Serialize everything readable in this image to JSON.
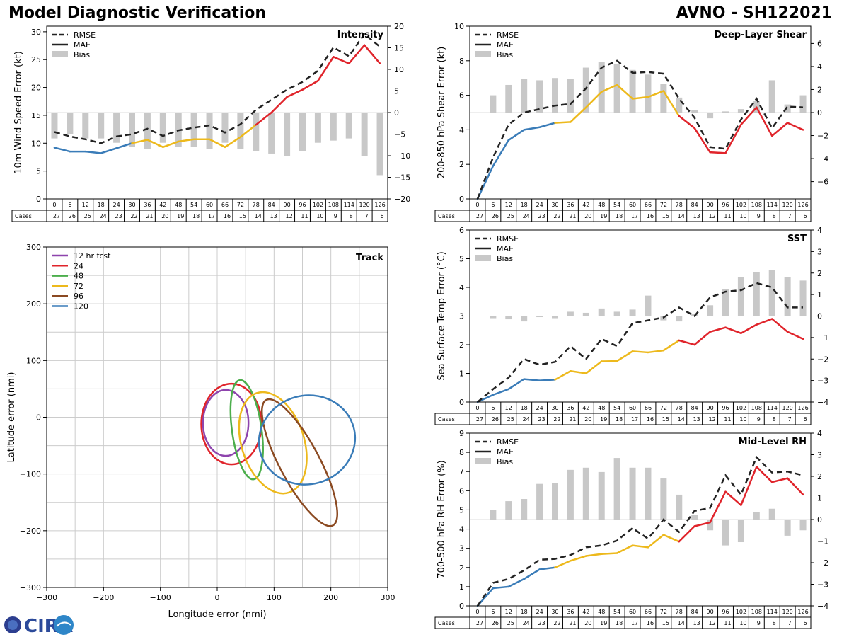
{
  "page": {
    "title": "Model Diagnostic Verification",
    "model_label": "AVNO - SH122021",
    "logo_text": "CIRA"
  },
  "legend_labels": {
    "rmse": "RMSE",
    "mae": "MAE",
    "bias": "Bias",
    "cases": "Cases"
  },
  "colors": {
    "blue": "#3a7cb8",
    "yellow": "#edb91c",
    "red": "#e0242b",
    "bias": "#c8c8c8",
    "dash": "#222222",
    "grid": "#cccccc",
    "track12": "#8e44ad",
    "track24": "#e0242b",
    "track48": "#4cae4c",
    "track72": "#edb91c",
    "track96": "#8b4a22",
    "track120": "#3a7cb8"
  },
  "chart_data": [
    {
      "id": "intensity",
      "type": "line",
      "title": "Intensity",
      "ylabel": "10m Wind Speed Error (kt)",
      "ylim": [
        0,
        31
      ],
      "yticks": [
        0,
        5,
        10,
        15,
        20,
        25,
        30
      ],
      "y2lim": [
        -20,
        20
      ],
      "y2ticks": [
        -20,
        -15,
        -10,
        -5,
        0,
        5,
        10,
        15,
        20
      ],
      "x": [
        0,
        6,
        12,
        18,
        24,
        30,
        36,
        42,
        48,
        54,
        60,
        66,
        72,
        78,
        84,
        90,
        96,
        102,
        108,
        114,
        120,
        126
      ],
      "rmse": [
        12.0,
        11.2,
        10.7,
        10.0,
        11.2,
        11.6,
        12.6,
        11.3,
        12.3,
        12.8,
        13.2,
        11.9,
        13.4,
        16.0,
        17.8,
        19.6,
        21.0,
        23.0,
        27.2,
        25.6,
        29.6,
        27.3
      ],
      "mae": [
        9.2,
        8.5,
        8.5,
        8.2,
        9.1,
        10.0,
        10.6,
        9.3,
        10.3,
        10.7,
        10.7,
        9.3,
        11.1,
        13.3,
        15.5,
        18.3,
        19.6,
        21.2,
        25.5,
        24.3,
        27.6,
        24.3
      ],
      "bias": [
        -6,
        -5,
        -6,
        -6,
        -7,
        -8,
        -8.5,
        -7,
        -8,
        -8,
        -8.5,
        -7,
        -8.5,
        -9,
        -9.5,
        -10,
        -9,
        -7,
        -6.5,
        -6,
        -10,
        -14.5
      ],
      "cases": [
        27,
        26,
        25,
        24,
        23,
        22,
        21,
        20,
        19,
        18,
        17,
        16,
        15,
        14,
        13,
        12,
        11,
        10,
        9,
        8,
        7,
        6
      ]
    },
    {
      "id": "shear",
      "type": "line",
      "title": "Deep-Layer Shear",
      "ylabel": "200-850 hPa Shear Error (kt)",
      "ylim": [
        0,
        10
      ],
      "yticks": [
        0,
        2,
        4,
        6,
        8,
        10
      ],
      "y2lim": [
        -7.5,
        7.5
      ],
      "y2ticks": [
        -6,
        -4,
        -2,
        0,
        2,
        4,
        6
      ],
      "x": [
        0,
        6,
        12,
        18,
        24,
        30,
        36,
        42,
        48,
        54,
        60,
        66,
        72,
        78,
        84,
        90,
        96,
        102,
        108,
        114,
        120,
        126
      ],
      "rmse": [
        0.0,
        2.4,
        4.3,
        5.0,
        5.2,
        5.4,
        5.5,
        6.4,
        7.6,
        8.0,
        7.3,
        7.35,
        7.25,
        5.8,
        4.7,
        3.0,
        2.9,
        4.6,
        5.8,
        4.1,
        5.35,
        5.3
      ],
      "mae": [
        0.0,
        1.9,
        3.4,
        4.0,
        4.15,
        4.4,
        4.45,
        5.3,
        6.2,
        6.6,
        5.8,
        5.9,
        6.25,
        4.8,
        4.1,
        2.7,
        2.65,
        4.3,
        5.3,
        3.65,
        4.4,
        4.0
      ],
      "bias": [
        0,
        1.5,
        2.4,
        2.9,
        2.8,
        3.0,
        2.9,
        3.9,
        4.4,
        4.2,
        3.7,
        3.3,
        2.5,
        1.3,
        0.2,
        -0.5,
        0.1,
        0.3,
        1.0,
        2.8,
        0.7,
        1.5
      ],
      "cases": [
        27,
        26,
        25,
        24,
        23,
        22,
        21,
        20,
        19,
        18,
        17,
        16,
        15,
        14,
        13,
        12,
        11,
        10,
        9,
        8,
        7,
        6
      ]
    },
    {
      "id": "sst",
      "type": "line",
      "title": "SST",
      "ylabel": "Sea Surface Temp Error (°C)",
      "ylim": [
        0,
        6
      ],
      "yticks": [
        0,
        1,
        2,
        3,
        4,
        5,
        6
      ],
      "y2lim": [
        -4,
        4
      ],
      "y2ticks": [
        -4,
        -3,
        -2,
        -1,
        0,
        1,
        2,
        3,
        4
      ],
      "x": [
        0,
        6,
        12,
        18,
        24,
        30,
        36,
        42,
        48,
        54,
        60,
        66,
        72,
        78,
        84,
        90,
        96,
        102,
        108,
        114,
        120,
        126
      ],
      "rmse": [
        0.0,
        0.45,
        0.85,
        1.5,
        1.3,
        1.4,
        1.95,
        1.5,
        2.2,
        1.95,
        2.75,
        2.85,
        2.95,
        3.3,
        3.0,
        3.65,
        3.85,
        3.9,
        4.15,
        4.0,
        3.3,
        3.3
      ],
      "mae": [
        0.0,
        0.25,
        0.45,
        0.8,
        0.75,
        0.78,
        1.08,
        1.0,
        1.42,
        1.43,
        1.77,
        1.73,
        1.8,
        2.15,
        2.0,
        2.45,
        2.6,
        2.4,
        2.7,
        2.9,
        2.45,
        2.2
      ],
      "bias": [
        0,
        -0.1,
        -0.15,
        -0.25,
        -0.05,
        -0.1,
        0.2,
        0.15,
        0.35,
        0.2,
        0.3,
        0.95,
        -0.2,
        -0.25,
        0.1,
        0.5,
        1.25,
        1.8,
        2.05,
        2.15,
        1.8,
        1.65
      ],
      "cases": [
        27,
        26,
        25,
        24,
        23,
        22,
        21,
        20,
        19,
        18,
        17,
        16,
        15,
        14,
        13,
        12,
        11,
        10,
        9,
        8,
        7,
        6
      ]
    },
    {
      "id": "rh",
      "type": "line",
      "title": "Mid-Level RH",
      "ylabel": "700-500 hPa RH Error (%)",
      "ylim": [
        0,
        9
      ],
      "yticks": [
        0,
        1,
        2,
        3,
        4,
        5,
        6,
        7,
        8,
        9
      ],
      "y2lim": [
        -4,
        4
      ],
      "y2ticks": [
        -4,
        -3,
        -2,
        -1,
        0,
        1,
        2,
        3,
        4
      ],
      "x": [
        0,
        6,
        12,
        18,
        24,
        30,
        36,
        42,
        48,
        54,
        60,
        66,
        72,
        78,
        84,
        90,
        96,
        102,
        108,
        114,
        120,
        126
      ],
      "rmse": [
        0.0,
        1.2,
        1.4,
        1.85,
        2.4,
        2.45,
        2.65,
        3.05,
        3.15,
        3.4,
        4.05,
        3.5,
        4.5,
        3.85,
        4.95,
        5.1,
        6.8,
        5.8,
        7.75,
        6.95,
        7.0,
        6.8
      ],
      "mae": [
        0.0,
        0.92,
        1.0,
        1.4,
        1.9,
        2.0,
        2.35,
        2.6,
        2.7,
        2.75,
        3.15,
        3.05,
        3.7,
        3.35,
        4.15,
        4.35,
        5.95,
        5.25,
        7.25,
        6.45,
        6.65,
        5.8
      ],
      "bias": [
        0,
        0.45,
        0.85,
        0.95,
        1.65,
        1.7,
        2.3,
        2.4,
        2.2,
        2.85,
        2.4,
        2.4,
        1.9,
        1.15,
        0.2,
        -0.5,
        -1.2,
        -1.05,
        0.35,
        0.5,
        -0.75,
        -0.5
      ],
      "cases": [
        27,
        26,
        25,
        24,
        23,
        22,
        21,
        20,
        19,
        18,
        17,
        16,
        15,
        14,
        13,
        12,
        11,
        10,
        9,
        8,
        7,
        6
      ]
    },
    {
      "id": "track",
      "type": "scatter",
      "title": "Track",
      "xlabel": "Longitude error (nmi)",
      "ylabel": "Latitude error (nmi)",
      "xlim": [
        -300,
        300
      ],
      "ylim": [
        -300,
        300
      ],
      "xticks": [
        -300,
        -200,
        -100,
        0,
        100,
        200,
        300
      ],
      "yticks": [
        -300,
        -200,
        -100,
        0,
        100,
        200,
        300
      ],
      "ellipses": [
        {
          "label": "12 hr fcst",
          "color_key": "track12",
          "cx": 15,
          "cy": -10,
          "rx": 40,
          "ry": 58,
          "angle": 0
        },
        {
          "label": "24",
          "color_key": "track24",
          "cx": 25,
          "cy": -12,
          "rx": 53,
          "ry": 71,
          "angle": 0
        },
        {
          "label": "48",
          "color_key": "track48",
          "cx": 52,
          "cy": -22,
          "rx": 26,
          "ry": 88,
          "angle": -8
        },
        {
          "label": "72",
          "color_key": "track72",
          "cx": 98,
          "cy": -45,
          "rx": 55,
          "ry": 92,
          "angle": -18
        },
        {
          "label": "96",
          "color_key": "track96",
          "cx": 145,
          "cy": -80,
          "rx": 35,
          "ry": 125,
          "angle": -28
        },
        {
          "label": "120",
          "color_key": "track120",
          "cx": 158,
          "cy": -40,
          "rx": 85,
          "ry": 78,
          "angle": -15
        }
      ]
    }
  ]
}
